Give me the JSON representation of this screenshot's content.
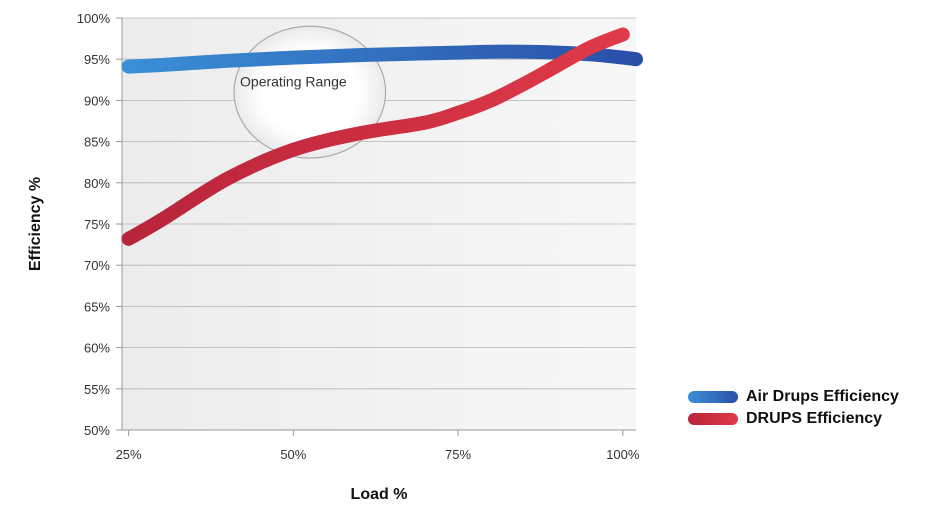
{
  "chart_data": {
    "type": "line",
    "xlabel": "Load %",
    "ylabel": "Efficiency %",
    "x": [
      25,
      30,
      40,
      50,
      60,
      70,
      75,
      80,
      85,
      90,
      95,
      100,
      102
    ],
    "x_ticks": [
      25,
      50,
      75,
      100
    ],
    "x_tick_labels": [
      "25%",
      "50%",
      "75%",
      "100%"
    ],
    "xlim": [
      24,
      102
    ],
    "ylim": [
      50,
      100
    ],
    "y_ticks": [
      50,
      55,
      60,
      65,
      70,
      75,
      80,
      85,
      90,
      95,
      100
    ],
    "y_tick_labels": [
      "50%",
      "55%",
      "60%",
      "65%",
      "70%",
      "75%",
      "80%",
      "85%",
      "90%",
      "95%",
      "100%"
    ],
    "grid": "horizontal",
    "legend_position": "bottom-right",
    "series": [
      {
        "name": "Air Drups Efficiency",
        "color": "#2a5fb4",
        "color_start": "#3a8fd6",
        "x": [
          25,
          30,
          40,
          50,
          60,
          70,
          75,
          80,
          85,
          90,
          95,
          100,
          102
        ],
        "values": [
          94.1,
          94.3,
          94.8,
          95.2,
          95.5,
          95.7,
          95.8,
          95.9,
          95.9,
          95.8,
          95.6,
          95.2,
          95.0
        ]
      },
      {
        "name": "DRUPS Efficiency",
        "color": "#c42a3a",
        "color_start": "#b8243a",
        "x": [
          25,
          30,
          40,
          50,
          60,
          70,
          75,
          80,
          85,
          90,
          95,
          100
        ],
        "values": [
          73.2,
          75.5,
          80.5,
          84.0,
          86.0,
          87.3,
          88.5,
          90.0,
          92.0,
          94.2,
          96.4,
          98.0
        ]
      }
    ],
    "annotations": [
      {
        "text": "Operating Range",
        "shape": "ellipse",
        "x_range": [
          41,
          64
        ],
        "y_range": [
          83,
          99
        ]
      }
    ]
  }
}
